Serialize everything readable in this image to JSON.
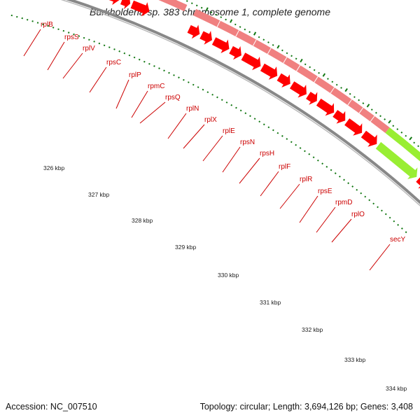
{
  "map": {
    "title": "Burkholderia sp. 383 chromosome 1, complete genome",
    "accession_label": "Accession: NC_007510",
    "summary_label": "Topology: circular; Length: 3,694,126 bp; Genes: 3,408",
    "colors": {
      "gene": "#ff0000",
      "gene_band": "#f08080",
      "highlight": "#99ee33",
      "backbone": "#888888",
      "tick": "#117711",
      "label": "#cc0000"
    },
    "genes": [
      "rplB",
      "rpsS",
      "rplV",
      "rpsC",
      "rplP",
      "rpmC",
      "rpsQ",
      "rplN",
      "rplX",
      "rplE",
      "rpsN",
      "rpsH",
      "rplF",
      "rplR",
      "rpsE",
      "rpmD",
      "rplO",
      "secY"
    ],
    "highlighted_gene": "secY",
    "scale_labels": [
      "326 kbp",
      "327 kbp",
      "328 kbp",
      "329 kbp",
      "330 kbp",
      "331 kbp",
      "332 kbp",
      "333 kbp",
      "334 kbp"
    ]
  }
}
